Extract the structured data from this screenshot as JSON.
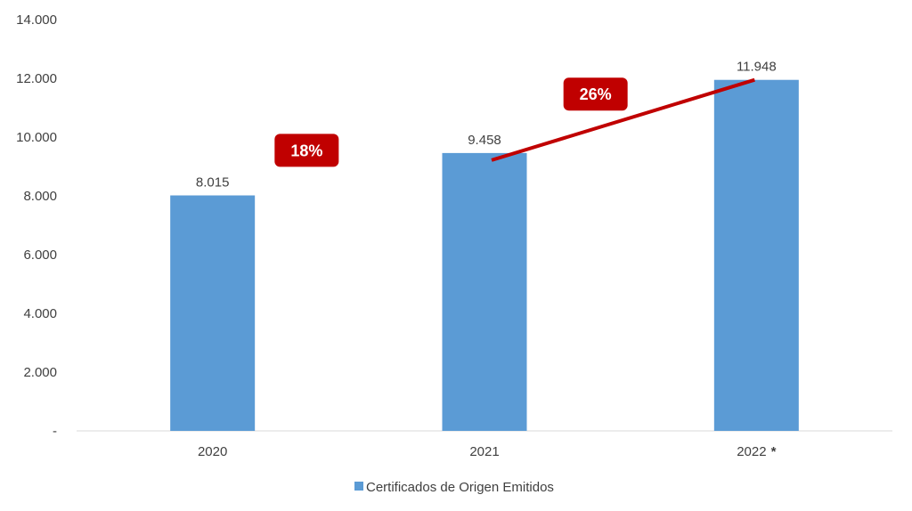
{
  "chart_data": {
    "type": "bar",
    "categories": [
      "2020",
      "2021",
      "2022"
    ],
    "category_marks": [
      "",
      "",
      "*"
    ],
    "series": [
      {
        "name": "Certificados de Origen Emitidos",
        "values": [
          8015,
          9458,
          11948
        ],
        "value_labels": [
          "8.015",
          "9.458",
          "11.948"
        ],
        "color": "#5B9BD5"
      }
    ],
    "ylim": [
      0,
      14000
    ],
    "y_ticks": [
      {
        "value": 0,
        "label": "-"
      },
      {
        "value": 2000,
        "label": "2.000"
      },
      {
        "value": 4000,
        "label": "4.000"
      },
      {
        "value": 6000,
        "label": "6.000"
      },
      {
        "value": 8000,
        "label": "8.000"
      },
      {
        "value": 10000,
        "label": "10.000"
      },
      {
        "value": 12000,
        "label": "12.000"
      },
      {
        "value": 14000,
        "label": "14.000"
      }
    ],
    "grid": false,
    "legend": {
      "position": "bottom"
    },
    "annotations": [
      {
        "text": "18%",
        "between": [
          "2020",
          "2021"
        ],
        "trend_line": false
      },
      {
        "text": "26%",
        "between": [
          "2021",
          "2022"
        ],
        "trend_line": true
      }
    ],
    "annotation_color": "#C00000",
    "axis_color": "#D9D9D9"
  }
}
